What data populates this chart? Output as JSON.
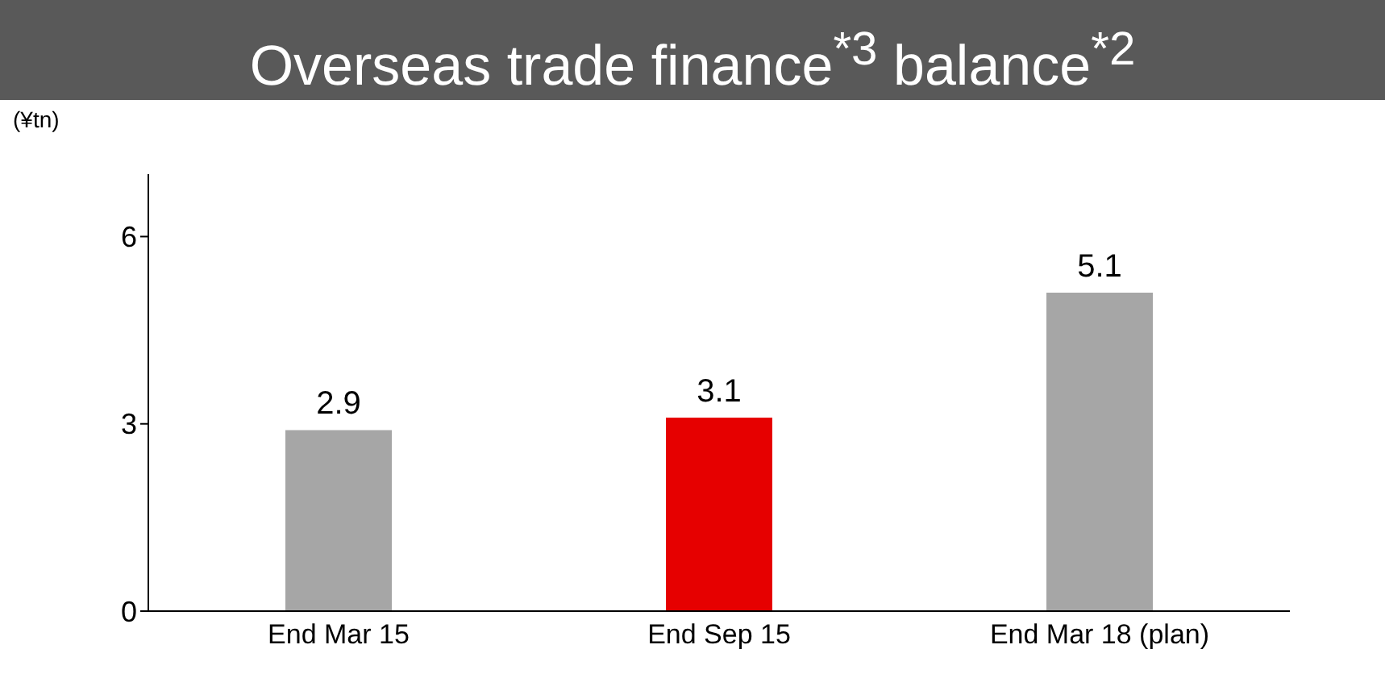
{
  "chart_data": {
    "type": "bar",
    "title": "Overseas trade finance$^{*3}$ balance$^{*2}$",
    "ylabel": "(¥tn)",
    "categories": [
      "End Mar 15",
      "End Sep 15",
      "End Mar 18 (plan)"
    ],
    "values": [
      2.9,
      3.1,
      5.1
    ],
    "colors": [
      "#a6a6a6",
      "#e60000",
      "#a6a6a6"
    ],
    "ylim": [
      0,
      7
    ],
    "yticks": [
      0,
      3,
      6
    ],
    "grid": false,
    "data_labels": true
  }
}
